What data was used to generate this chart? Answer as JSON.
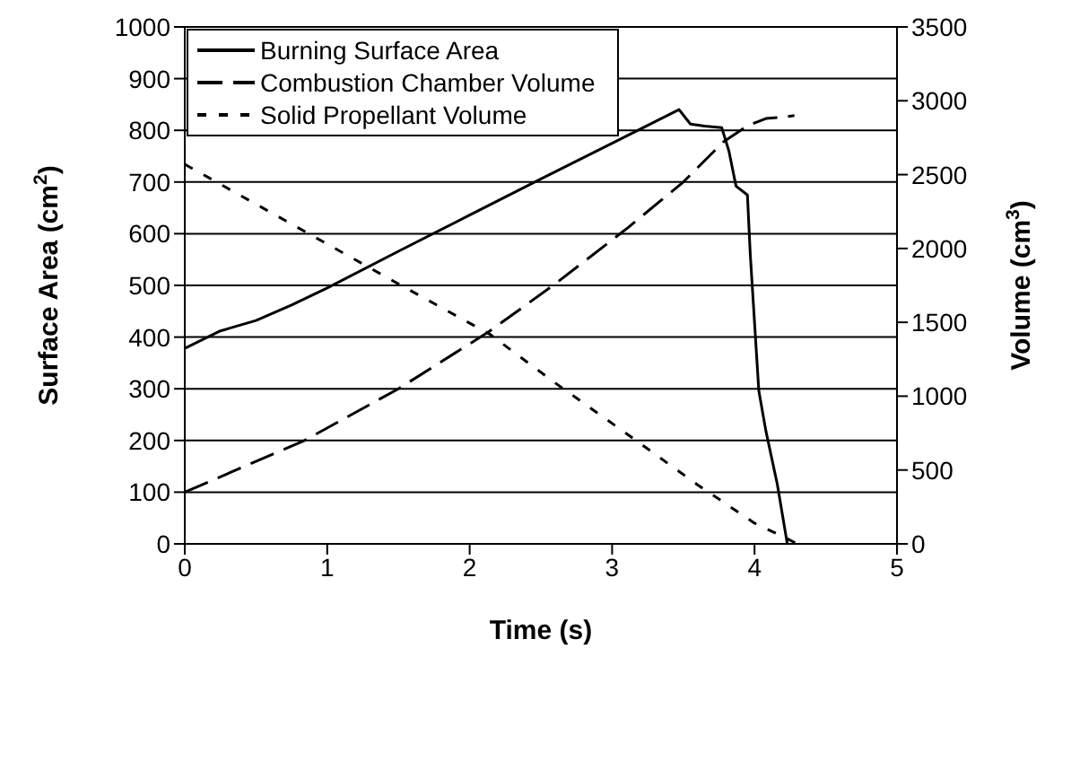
{
  "chart_data": {
    "type": "line",
    "xlabel": "Time (s)",
    "ylabel": "Surface Area (cm$^{2}$)",
    "y2label": "Volume (cm$^{3}$)",
    "xlim": [
      0,
      5
    ],
    "xticks": [
      0,
      1,
      2,
      3,
      4,
      5
    ],
    "ylim": [
      0,
      1000
    ],
    "yticks": [
      0,
      100,
      200,
      300,
      400,
      500,
      600,
      700,
      800,
      900,
      1000
    ],
    "y2lim": [
      0,
      3500
    ],
    "y2ticks": [
      0,
      500,
      1000,
      1500,
      2000,
      2500,
      3000,
      3500
    ],
    "grid": "y",
    "legend": "top left",
    "marker": "none",
    "series": [
      {
        "name": "Burning Surface Area",
        "color": "#000000",
        "line_style": "solid",
        "x": [
          0,
          0.25,
          0.5,
          0.75,
          1,
          1.5,
          2,
          2.5,
          3,
          3.47,
          3.55,
          3.65,
          3.77,
          3.82,
          3.87,
          3.95,
          3.97,
          4.03,
          4.08,
          4.16,
          4.23
        ],
        "values": [
          378,
          412,
          432,
          462,
          495,
          566,
          636,
          706,
          775,
          840,
          812,
          808,
          805,
          760,
          692,
          675,
          560,
          296,
          218,
          115,
          0
        ]
      },
      {
        "name": "Combustion Chamber Volume",
        "color": "#000000",
        "line_style": "dashed",
        "axis": "y2",
        "x": [
          0,
          0.84,
          1.5,
          2.14,
          2.6,
          3.11,
          3.5,
          3.78,
          3.95,
          4.08,
          4.2,
          4.28
        ],
        "values": [
          350,
          700,
          1050,
          1440,
          1760,
          2140,
          2450,
          2720,
          2830,
          2880,
          2890,
          2900
        ]
      },
      {
        "name": "Solid Propellant Volume",
        "color": "#000000",
        "line_style": "dotted",
        "axis": "y2",
        "x": [
          0,
          0.5,
          1,
          1.5,
          2.14,
          2.6,
          3.11,
          3.6,
          4,
          4.24,
          4.3
        ],
        "values": [
          2570,
          2300,
          2030,
          1760,
          1420,
          1090,
          740,
          400,
          140,
          30,
          0
        ]
      }
    ]
  }
}
